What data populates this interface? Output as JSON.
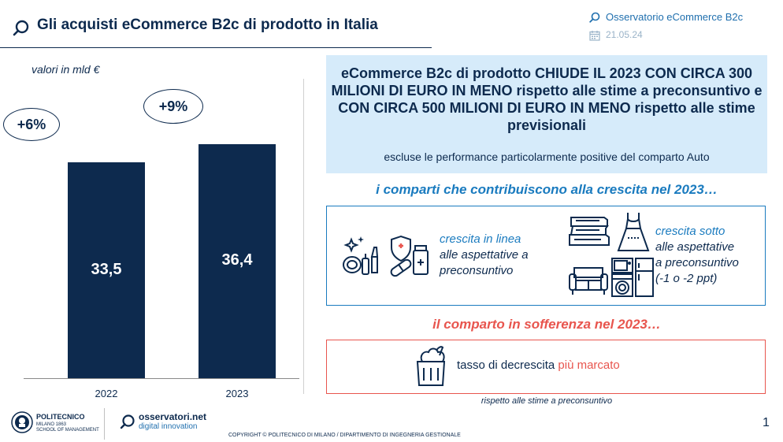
{
  "header": {
    "title": "Gli acquisti eCommerce B2c di prodotto in Italia",
    "source": "Osservatorio eCommerce B2c",
    "date": "21.05.24"
  },
  "chart_data": {
    "type": "bar",
    "ylabel": "valori in mld €",
    "categories": [
      "2022",
      "2023"
    ],
    "values": [
      33.5,
      36.4
    ],
    "value_labels": [
      "33,5",
      "36,4"
    ],
    "growth_labels": [
      "+6%",
      "+9%"
    ],
    "ylim": [
      0,
      40
    ],
    "grid": false,
    "bar_color": "#0d2a4e"
  },
  "headline": {
    "text": "eCommerce B2c di prodotto CHIUDE IL 2023 CON CIRCA 300 MILIONI DI EURO IN MENO rispetto alle stime a preconsuntivo e CON CIRCA 500 MILIONI DI EURO IN MENO rispetto alle stime previsionali",
    "note": "escluse le performance particolarmente positive del comparto Auto"
  },
  "growth_section": {
    "heading": "i comparti che contribuiscono alla crescita nel 2023…",
    "inline_line1": "crescita in linea",
    "inline_line2": "alle aspettative a",
    "inline_line3": "preconsuntivo",
    "below_line1": "crescita sotto",
    "below_line2": "alle aspettative",
    "below_line3": "a preconsuntivo",
    "below_line4": "(-1 o -2 ppt)",
    "inline_icons": [
      "cosmetics-icon",
      "pharma-icon"
    ],
    "below_icons": [
      "books-icon",
      "dress-icon",
      "sofa-icon",
      "appliances-icon"
    ]
  },
  "suffer_section": {
    "heading": "il comparto in sofferenza nel 2023…",
    "text_prefix": "tasso di decrescita ",
    "text_highlight": "più marcato",
    "footnote": "rispetto alle stime a preconsuntivo",
    "icon": "grocery-bag-icon"
  },
  "footer": {
    "polimi_name": "POLITECNICO",
    "polimi_sub1": "MILANO 1863",
    "polimi_sub2": "SCHOOL OF MANAGEMENT",
    "osserv_name": "osservatori.net",
    "osserv_sub": "digital innovation",
    "copyright": "COPYRIGHT © POLITECNICO DI MILANO / DIPARTIMENTO DI INGEGNERIA GESTIONALE",
    "page_number": "1"
  },
  "colors": {
    "navy": "#0d2a4e",
    "blue": "#1a7bbf",
    "red": "#e8554e",
    "light_blue": "#d6ebfa"
  }
}
